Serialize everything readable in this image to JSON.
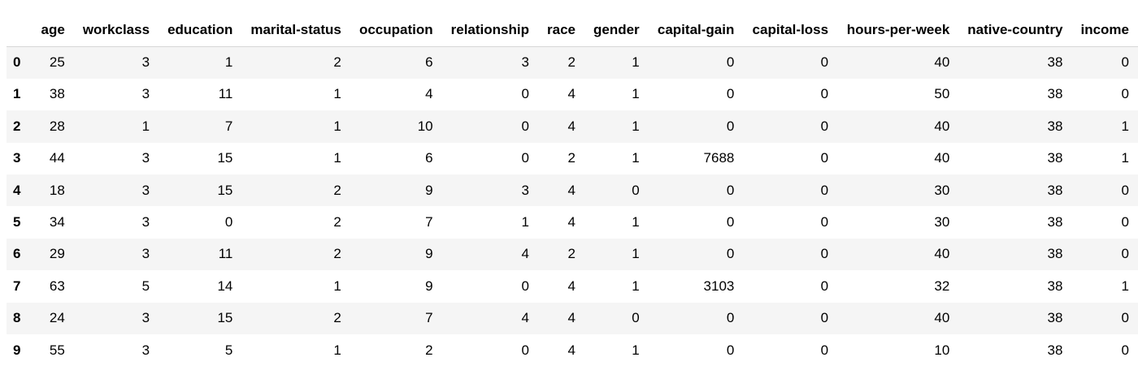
{
  "table": {
    "index_header": "",
    "columns": [
      "age",
      "workclass",
      "education",
      "marital-status",
      "occupation",
      "relationship",
      "race",
      "gender",
      "capital-gain",
      "capital-loss",
      "hours-per-week",
      "native-country",
      "income"
    ],
    "rows": [
      {
        "index": "0",
        "values": [
          "25",
          "3",
          "1",
          "2",
          "6",
          "3",
          "2",
          "1",
          "0",
          "0",
          "40",
          "38",
          "0"
        ]
      },
      {
        "index": "1",
        "values": [
          "38",
          "3",
          "11",
          "1",
          "4",
          "0",
          "4",
          "1",
          "0",
          "0",
          "50",
          "38",
          "0"
        ]
      },
      {
        "index": "2",
        "values": [
          "28",
          "1",
          "7",
          "1",
          "10",
          "0",
          "4",
          "1",
          "0",
          "0",
          "40",
          "38",
          "1"
        ]
      },
      {
        "index": "3",
        "values": [
          "44",
          "3",
          "15",
          "1",
          "6",
          "0",
          "2",
          "1",
          "7688",
          "0",
          "40",
          "38",
          "1"
        ]
      },
      {
        "index": "4",
        "values": [
          "18",
          "3",
          "15",
          "2",
          "9",
          "3",
          "4",
          "0",
          "0",
          "0",
          "30",
          "38",
          "0"
        ]
      },
      {
        "index": "5",
        "values": [
          "34",
          "3",
          "0",
          "2",
          "7",
          "1",
          "4",
          "1",
          "0",
          "0",
          "30",
          "38",
          "0"
        ]
      },
      {
        "index": "6",
        "values": [
          "29",
          "3",
          "11",
          "2",
          "9",
          "4",
          "2",
          "1",
          "0",
          "0",
          "40",
          "38",
          "0"
        ]
      },
      {
        "index": "7",
        "values": [
          "63",
          "5",
          "14",
          "1",
          "9",
          "0",
          "4",
          "1",
          "3103",
          "0",
          "32",
          "38",
          "1"
        ]
      },
      {
        "index": "8",
        "values": [
          "24",
          "3",
          "15",
          "2",
          "7",
          "4",
          "4",
          "0",
          "0",
          "0",
          "40",
          "38",
          "0"
        ]
      },
      {
        "index": "9",
        "values": [
          "55",
          "3",
          "5",
          "1",
          "2",
          "0",
          "4",
          "1",
          "0",
          "0",
          "10",
          "38",
          "0"
        ]
      }
    ]
  },
  "colors": {
    "striped_row_background": "#f5f5f5",
    "header_rule": "#d7d7d7",
    "text": "#000000"
  }
}
